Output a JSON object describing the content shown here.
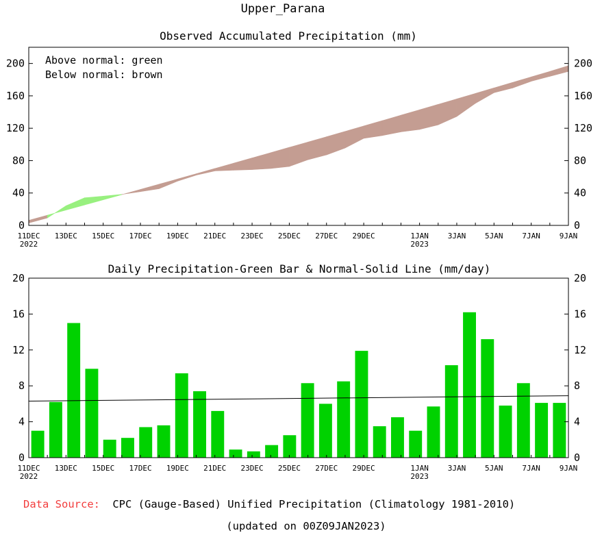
{
  "page": {
    "title": "Upper_Parana",
    "footer": {
      "source_label": "Data Source:",
      "source_text": "CPC (Gauge-Based) Unified Precipitation (Climatology 1981-2010)",
      "updated": "(updated on 00Z09JAN2023)"
    }
  },
  "colors": {
    "above": "#98f07f",
    "below": "#c49d92",
    "bar": "#00d200",
    "line": "#000000",
    "source_label": "#f23c3c"
  },
  "chart_data": [
    {
      "type": "area",
      "title": "Observed Accumulated Precipitation (mm)",
      "legend": [
        "Above normal: green",
        "Below normal: brown"
      ],
      "legend_position": "top-left",
      "x_labels": [
        {
          "day": 0,
          "label": "11DEC",
          "year": "2022"
        },
        {
          "day": 2,
          "label": "13DEC"
        },
        {
          "day": 4,
          "label": "15DEC"
        },
        {
          "day": 6,
          "label": "17DEC"
        },
        {
          "day": 8,
          "label": "19DEC"
        },
        {
          "day": 10,
          "label": "21DEC"
        },
        {
          "day": 12,
          "label": "23DEC"
        },
        {
          "day": 14,
          "label": "25DEC"
        },
        {
          "day": 16,
          "label": "27DEC"
        },
        {
          "day": 18,
          "label": "29DEC"
        },
        {
          "day": 21,
          "label": "1JAN",
          "year": "2023"
        },
        {
          "day": 23,
          "label": "3JAN"
        },
        {
          "day": 25,
          "label": "5JAN"
        },
        {
          "day": 27,
          "label": "7JAN"
        },
        {
          "day": 29,
          "label": "9JAN"
        }
      ],
      "xlim": [
        0,
        29
      ],
      "ylim": [
        0,
        220
      ],
      "yticks": [
        0,
        40,
        80,
        120,
        160,
        200
      ],
      "series": [
        {
          "name": "Observed accumulated",
          "x": [
            0,
            1,
            2,
            3,
            4,
            5,
            6,
            7,
            8,
            9,
            10,
            11,
            12,
            13,
            14,
            15,
            16,
            17,
            18,
            19,
            20,
            21,
            22,
            23,
            24,
            25,
            26,
            27,
            28,
            29
          ],
          "values": [
            3,
            9.2,
            24.2,
            34.1,
            36.1,
            38.3,
            41.7,
            45.3,
            54.7,
            62.1,
            67.3,
            68.2,
            68.9,
            70.3,
            72.8,
            81.1,
            87.1,
            95.6,
            107.5,
            111.0,
            115.5,
            118.5,
            124.2,
            134.5,
            150.7,
            163.9,
            169.7,
            178.0,
            184.1,
            190.2
          ]
        },
        {
          "name": "Normal accumulated",
          "x": [
            0,
            1,
            2,
            3,
            4,
            5,
            6,
            7,
            8,
            9,
            10,
            11,
            12,
            13,
            14,
            15,
            16,
            17,
            18,
            19,
            20,
            21,
            22,
            23,
            24,
            25,
            26,
            27,
            28,
            29
          ],
          "values": [
            6.3,
            12.6,
            18.9,
            25.3,
            31.6,
            38.0,
            44.4,
            50.9,
            57.3,
            63.8,
            70.3,
            76.8,
            83.3,
            89.8,
            96.4,
            102.9,
            109.5,
            116.1,
            122.8,
            129.4,
            136.1,
            142.8,
            149.5,
            156.2,
            163.0,
            169.8,
            176.6,
            183.4,
            190.2,
            197.2
          ]
        }
      ]
    },
    {
      "type": "bar",
      "title": "Daily Precipitation-Green Bar & Normal-Solid Line (mm/day)",
      "x_labels": [
        {
          "day": 0,
          "label": "11DEC",
          "year": "2022"
        },
        {
          "day": 2,
          "label": "13DEC"
        },
        {
          "day": 4,
          "label": "15DEC"
        },
        {
          "day": 6,
          "label": "17DEC"
        },
        {
          "day": 8,
          "label": "19DEC"
        },
        {
          "day": 10,
          "label": "21DEC"
        },
        {
          "day": 12,
          "label": "23DEC"
        },
        {
          "day": 14,
          "label": "25DEC"
        },
        {
          "day": 16,
          "label": "27DEC"
        },
        {
          "day": 18,
          "label": "29DEC"
        },
        {
          "day": 21,
          "label": "1JAN",
          "year": "2023"
        },
        {
          "day": 23,
          "label": "3JAN"
        },
        {
          "day": 25,
          "label": "5JAN"
        },
        {
          "day": 27,
          "label": "7JAN"
        },
        {
          "day": 29,
          "label": "9JAN"
        }
      ],
      "xlim": [
        0,
        29
      ],
      "ylim": [
        0,
        20
      ],
      "yticks": [
        0,
        4,
        8,
        12,
        16,
        20
      ],
      "series": [
        {
          "name": "Daily precipitation",
          "values": [
            3.0,
            6.2,
            15.0,
            9.9,
            2.0,
            2.2,
            3.4,
            3.6,
            9.4,
            7.4,
            5.2,
            0.9,
            0.7,
            1.4,
            2.5,
            8.3,
            6.0,
            8.5,
            11.9,
            3.5,
            4.5,
            3.0,
            5.7,
            10.3,
            16.2,
            13.2,
            5.8,
            8.3,
            6.1,
            6.1
          ]
        },
        {
          "name": "Normal",
          "line": true,
          "x": [
            0,
            29
          ],
          "values": [
            6.3,
            6.9
          ]
        }
      ]
    }
  ]
}
